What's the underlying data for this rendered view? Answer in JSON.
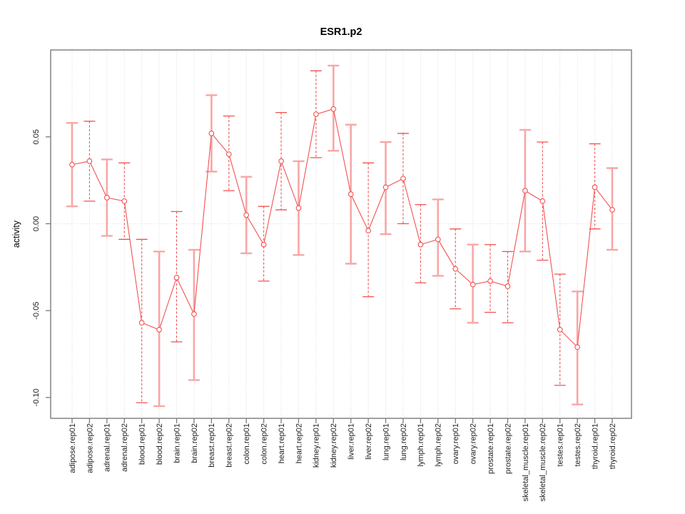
{
  "page": {
    "background": "#ffffff",
    "description": "R-style points-with-error-bars plot of promoter activity per tissue replicate"
  },
  "chart_data": {
    "type": "line",
    "title": "ESR1.p2",
    "xlabel": "",
    "ylabel": "activity",
    "ylim": [
      -0.112,
      0.1
    ],
    "yticks": [
      0.05,
      0.0,
      -0.05,
      -0.1
    ],
    "ytick_labels": [
      "0.05",
      "0.00",
      "-0.05",
      "-0.10"
    ],
    "grid": {
      "vertical_per_category": true,
      "horizontal_at_zero": true,
      "style": "dotted"
    },
    "legend_position": "none",
    "marker": "open-circle",
    "categories": [
      "adipose.rep01",
      "adipose.rep02",
      "adrenal.rep01",
      "adrenal.rep02",
      "blood.rep01",
      "blood.rep02",
      "brain.rep01",
      "brain.rep02",
      "breast.rep01",
      "breast.rep02",
      "colon.rep01",
      "colon.rep02",
      "heart.rep01",
      "heart.rep02",
      "kidney.rep01",
      "kidney.rep02",
      "liver.rep01",
      "liver.rep02",
      "lung.rep01",
      "lung.rep02",
      "lymph.rep01",
      "lymph.rep02",
      "ovary.rep01",
      "ovary.rep02",
      "prostate.rep01",
      "prostate.rep02",
      "skeletal_muscle.rep01",
      "skeletal_muscle.rep02",
      "testes.rep01",
      "testes.rep02",
      "thyroid.rep01",
      "thyroid.rep02"
    ],
    "series": [
      {
        "name": "ESR1.p2 activity",
        "values": [
          0.034,
          0.036,
          0.015,
          0.013,
          -0.057,
          -0.061,
          -0.031,
          -0.052,
          0.052,
          0.04,
          0.005,
          -0.012,
          0.036,
          0.009,
          0.063,
          0.066,
          0.017,
          -0.004,
          0.021,
          0.026,
          -0.012,
          -0.009,
          -0.026,
          -0.035,
          -0.033,
          -0.036,
          0.019,
          0.013,
          -0.061,
          -0.071,
          0.021,
          0.008
        ],
        "lower": [
          0.01,
          0.013,
          -0.007,
          -0.009,
          -0.103,
          -0.105,
          -0.068,
          -0.09,
          0.03,
          0.019,
          -0.017,
          -0.033,
          0.008,
          -0.018,
          0.038,
          0.042,
          -0.023,
          -0.042,
          -0.006,
          0.0,
          -0.034,
          -0.03,
          -0.049,
          -0.057,
          -0.051,
          -0.057,
          -0.016,
          -0.021,
          -0.093,
          -0.104,
          -0.003,
          -0.015
        ],
        "upper": [
          0.058,
          0.059,
          0.037,
          0.035,
          -0.009,
          -0.016,
          0.007,
          -0.015,
          0.074,
          0.062,
          0.027,
          0.01,
          0.064,
          0.036,
          0.088,
          0.091,
          0.057,
          0.035,
          0.047,
          0.052,
          0.011,
          0.014,
          -0.003,
          -0.012,
          -0.012,
          -0.016,
          0.054,
          0.047,
          -0.029,
          -0.039,
          0.046,
          0.032
        ],
        "bar_styles": [
          "solid",
          "dashed",
          "solid",
          "dashed",
          "dashed",
          "solid",
          "dashed",
          "solid",
          "solid",
          "dashed",
          "solid",
          "dashed",
          "dashed",
          "solid",
          "dashed",
          "solid",
          "solid",
          "dashed",
          "solid",
          "dashed",
          "dashed",
          "solid",
          "dashed",
          "solid",
          "dashed",
          "dashed",
          "solid",
          "dashed",
          "dashed",
          "solid",
          "dashed",
          "solid"
        ]
      }
    ]
  },
  "colors": {
    "line": "#F25252",
    "marker_stroke": "#F25252",
    "marker_fill": "#FFFFFF",
    "errorbar_solid": "#F9A6A6",
    "errorbar_dashed": "#F25252",
    "grid": "#D8D8D8",
    "axis": "#7A7A7A",
    "text": "#1D1D1D"
  }
}
